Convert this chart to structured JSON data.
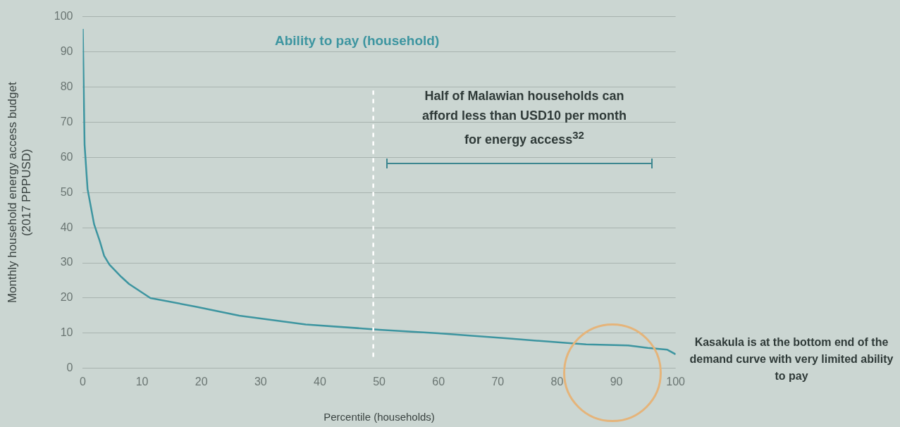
{
  "chart_data": {
    "type": "line",
    "xlabel": "Percentile (households)",
    "ylabel": "Monthly household energy access budget\n(2017 PPPUSD)",
    "x": [
      0,
      0.3,
      0.8,
      1.9,
      2.9,
      3.6,
      4.5,
      6.5,
      7.8,
      11.4,
      19.2,
      26.4,
      37.6,
      50,
      60,
      71.7,
      84.9,
      92,
      95.3,
      98.6,
      100
    ],
    "series": [
      {
        "name": "Ability to pay (household)",
        "color": "#3d95a0",
        "values": [
          96.5,
          63.6,
          51,
          41,
          36,
          32,
          29.5,
          26,
          24,
          20,
          17.5,
          15,
          12.5,
          11,
          10,
          8.5,
          6.8,
          6.5,
          5.8,
          5.3,
          4
        ]
      }
    ],
    "xlim": [
      0,
      100
    ],
    "xticks": [
      0,
      10,
      20,
      30,
      40,
      50,
      60,
      70,
      80,
      90,
      100
    ],
    "ylim": [
      0,
      100
    ],
    "yticks": [
      0,
      10,
      20,
      30,
      40,
      50,
      60,
      70,
      80,
      90,
      100
    ],
    "grid": "y",
    "legend": false,
    "marker": "none",
    "line_style": "solid",
    "ref_lines": [
      {
        "axis": "x",
        "value": 49,
        "color": "#ffffff",
        "line_style": "dashed"
      }
    ],
    "annotations": [
      "Half of Malawian households can afford less than USD10 per month for energy access$^{32}$",
      "Kasakula is at the bottom end of the demand curve with very limited ability to pay"
    ]
  }
}
